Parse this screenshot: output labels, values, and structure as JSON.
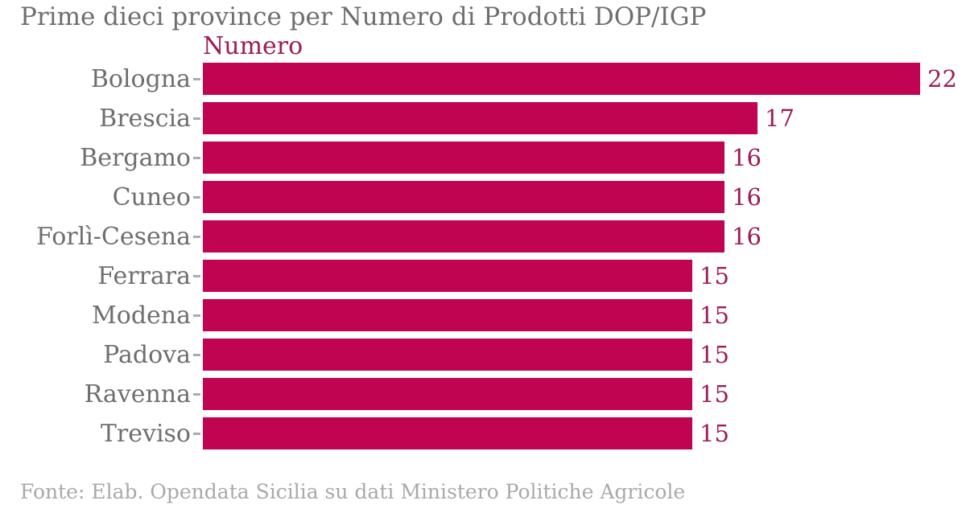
{
  "title": "Prime dieci province per Numero di Prodotti DOP/IGP",
  "legend_label": "Numero",
  "source": "Fonte: Elab. Opendata Sicilia su dati Ministero Politiche Agricole",
  "colors": {
    "bar": "#C10452",
    "value_text": "#9C1C56",
    "legend_text": "#9C1C56",
    "title_text": "#6D6E70",
    "category_text": "#6D6E70",
    "source_text": "#A7A9AC",
    "axis_tick": "#A9ABAE",
    "background": "#FFFFFF"
  },
  "chart_data": {
    "type": "bar",
    "orientation": "horizontal",
    "title": "Prime dieci province per Numero di Prodotti DOP/IGP",
    "series_label": "Numero",
    "categories": [
      "Bologna",
      "Brescia",
      "Bergamo",
      "Cuneo",
      "Forlì-Cesena",
      "Ferrara",
      "Modena",
      "Padova",
      "Ravenna",
      "Treviso"
    ],
    "values": [
      22,
      17,
      16,
      16,
      16,
      15,
      15,
      15,
      15,
      15
    ],
    "xlim": [
      0,
      22
    ],
    "grid": false,
    "legend_position": "top-left-above-bars",
    "value_labels": "end-of-bar"
  }
}
